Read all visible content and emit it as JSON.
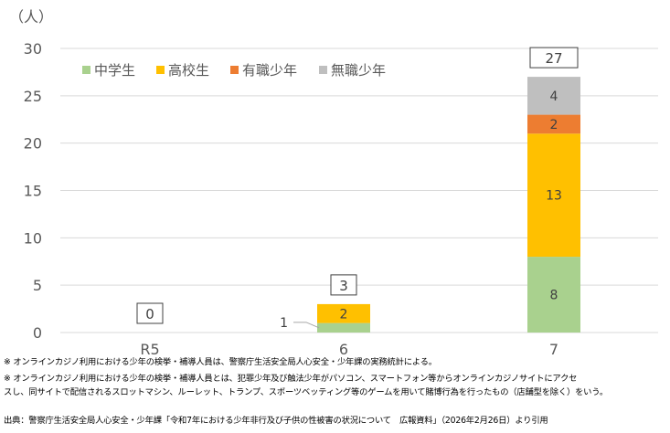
{
  "chart_data": {
    "type": "bar",
    "stacked": true,
    "ylabel": "（人）",
    "ylim": [
      0,
      30
    ],
    "yticks": [
      0,
      5,
      10,
      15,
      20,
      25,
      30
    ],
    "grid": true,
    "legend_placement": "top-left",
    "categories": [
      "R5",
      "6",
      "7"
    ],
    "series": [
      {
        "name": "中学生",
        "color": "#a9d18e",
        "values": [
          0,
          1,
          8
        ]
      },
      {
        "name": "高校生",
        "color": "#ffc000",
        "values": [
          0,
          2,
          13
        ]
      },
      {
        "name": "有職少年",
        "color": "#ed7d31",
        "values": [
          0,
          0,
          2
        ]
      },
      {
        "name": "無職少年",
        "color": "#bfbfbf",
        "values": [
          0,
          0,
          4
        ]
      }
    ],
    "totals": [
      0,
      3,
      27
    ]
  },
  "notes": [
    "※ オンラインカジノ利用における少年の検挙・補導人員は、警察庁生活安全局人心安全・少年課の実務統計による。",
    "※ オンラインカジノ利用における少年の検挙・補導人員とは、犯罪少年及び触法少年がパソコン、スマートフォン等からオンラインカジノサイトにアクセ",
    "スし、同サイトで配信されるスロットマシン、ルーレット、トランプ、スポーツベッティング等のゲームを用いて賭博行為を行ったもの（店舗型を除く）をいう。"
  ],
  "source": "出典：警察庁生活安全局人心安全・少年課「令和7年における少年非行及び子供の性被害の状況について　広報資料」（2026年2月26日）より引用"
}
